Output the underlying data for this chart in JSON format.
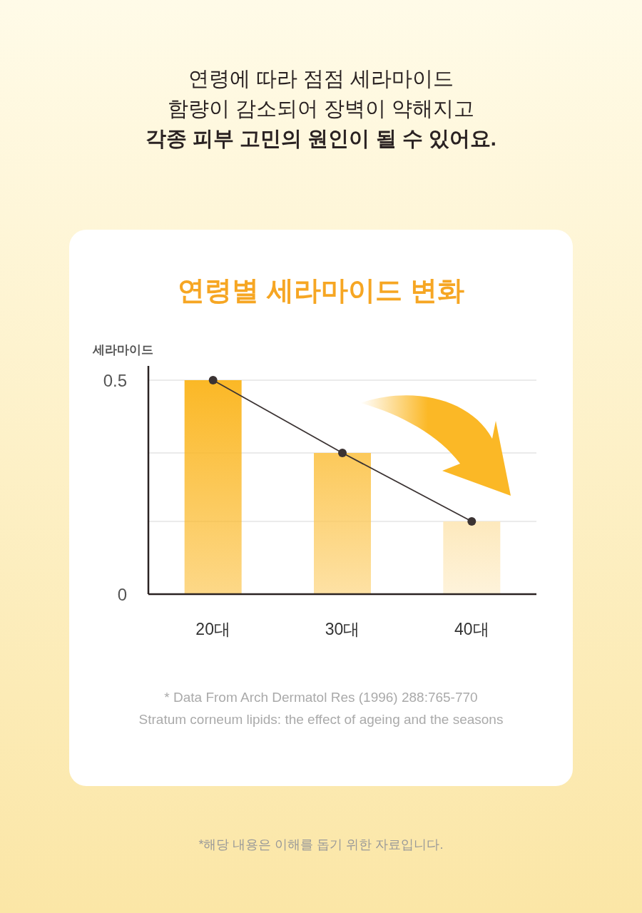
{
  "chart_data": {
    "type": "bar",
    "title": "연령별 세라마이드  변화",
    "ylabel": "세라마이드",
    "categories": [
      "20대",
      "30대",
      "40대"
    ],
    "series": [
      {
        "colors": [
          "#fbb826",
          "#fcc95a",
          "#fde9bd"
        ],
        "values": [
          0.5,
          0.33,
          0.17
        ]
      },
      {
        "type": "line",
        "color": "#3b3333",
        "marker": "circle",
        "values": [
          0.5,
          0.33,
          0.17
        ]
      }
    ],
    "ylim": [
      0,
      0.5
    ],
    "yticks": [
      0,
      0.5,
      {
        "value": 0.33,
        "label": null
      },
      {
        "value": 0.17,
        "label": null
      }
    ],
    "grid": "y",
    "annotations": [
      "연령에 따라 점점 세라마이드\n함량이 감소되어 장벽이 약해지고\n각종 피부 고민의 원인이 될 수 있어요.",
      "* Data From Arch Dermatol Res (1996) 288:765-770",
      "Stratum corneum lipids: the effect of ageing and the seasons",
      "*해당 내용은 이해를 돕기 위한 자료입니다."
    ]
  }
}
